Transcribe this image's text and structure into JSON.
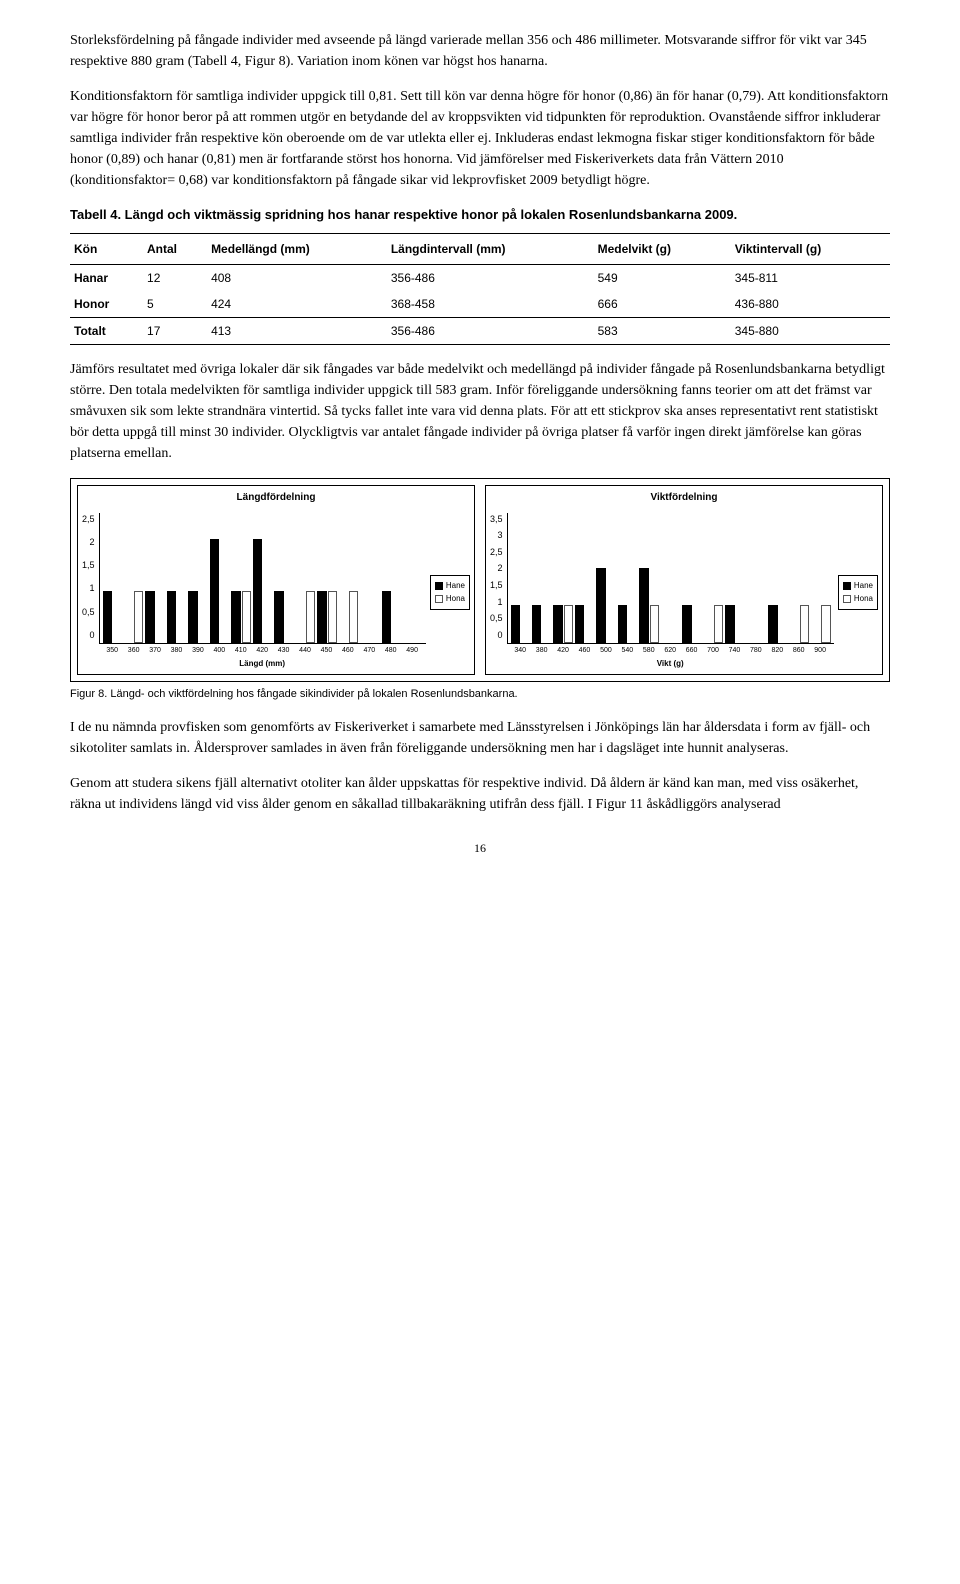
{
  "para1": "Storleksfördelning på fångade individer med avseende på längd varierade mellan 356 och 486 millimeter. Motsvarande siffror för vikt var 345 respektive 880 gram (Tabell 4, Figur 8). Variation inom könen var högst hos hanarna.",
  "para2": "Konditionsfaktorn för samtliga individer uppgick till 0,81. Sett till kön var denna högre för honor (0,86) än för hanar (0,79). Att konditionsfaktorn var högre för honor beror på att rommen utgör en betydande del av kroppsvikten vid tidpunkten för reproduktion. Ovanstående siffror inkluderar samtliga individer från respektive kön oberoende om de var utlekta eller ej. Inkluderas endast lekmogna fiskar stiger konditionsfaktorn för både honor (0,89) och hanar (0,81) men är fortfarande störst hos honorna. Vid jämförelser med Fiskeriverkets data från Vättern 2010 (konditionsfaktor= 0,68) var konditionsfaktorn på fångade sikar vid lekprovfisket 2009 betydligt högre.",
  "table_caption": "Tabell 4. Längd och viktmässig spridning hos hanar respektive honor på lokalen Rosenlundsbankarna 2009.",
  "table": {
    "headers": [
      "Kön",
      "Antal",
      "Medellängd (mm)",
      "Längdintervall (mm)",
      "Medelvikt (g)",
      "Viktintervall (g)"
    ],
    "rows": [
      [
        "Hanar",
        "12",
        "408",
        "356-486",
        "549",
        "345-811"
      ],
      [
        "Honor",
        "5",
        "424",
        "368-458",
        "666",
        "436-880"
      ],
      [
        "Totalt",
        "17",
        "413",
        "356-486",
        "583",
        "345-880"
      ]
    ]
  },
  "para3": "Jämförs resultatet med övriga lokaler där sik fångades var både medelvikt och medellängd på individer fångade på Rosenlundsbankarna betydligt större. Den totala medelvikten för samtliga individer uppgick till 583 gram. Inför föreliggande undersökning fanns teorier om att det främst var småvuxen sik som lekte strandnära vintertid. Så tycks fallet inte vara vid denna plats. För att ett stickprov ska anses representativt rent statistiskt bör detta uppgå till minst 30 individer. Olyckligtvis var antalet fångade individer på övriga platser få varför ingen direkt jämförelse kan göras platserna emellan.",
  "legend": {
    "hane": "Hane",
    "hona": "Hona"
  },
  "length_chart": {
    "title": "Längdfördelning",
    "y_ticks": [
      "2,5",
      "2",
      "1,5",
      "1",
      "0,5",
      "0"
    ],
    "y_max": 2.5,
    "x_ticks": [
      "350",
      "360",
      "370",
      "380",
      "390",
      "400",
      "410",
      "420",
      "430",
      "440",
      "450",
      "460",
      "470",
      "480",
      "490"
    ],
    "x_label": "Längd (mm)",
    "series": [
      {
        "hane": 1,
        "hona": 0
      },
      {
        "hane": 0,
        "hona": 1
      },
      {
        "hane": 1,
        "hona": 0
      },
      {
        "hane": 1,
        "hona": 0
      },
      {
        "hane": 1,
        "hona": 0
      },
      {
        "hane": 2,
        "hona": 0
      },
      {
        "hane": 1,
        "hona": 1
      },
      {
        "hane": 2,
        "hona": 0
      },
      {
        "hane": 1,
        "hona": 0
      },
      {
        "hane": 0,
        "hona": 1
      },
      {
        "hane": 1,
        "hona": 1
      },
      {
        "hane": 0,
        "hona": 1
      },
      {
        "hane": 0,
        "hona": 0
      },
      {
        "hane": 1,
        "hona": 0
      },
      {
        "hane": 0,
        "hona": 0
      }
    ]
  },
  "weight_chart": {
    "title": "Viktfördelning",
    "y_ticks": [
      "3,5",
      "3",
      "2,5",
      "2",
      "1,5",
      "1",
      "0,5",
      "0"
    ],
    "y_max": 3.5,
    "x_ticks": [
      "340",
      "380",
      "420",
      "460",
      "500",
      "540",
      "580",
      "620",
      "660",
      "700",
      "740",
      "780",
      "820",
      "860",
      "900"
    ],
    "x_label": "Vikt (g)",
    "series": [
      {
        "hane": 1,
        "hona": 0
      },
      {
        "hane": 1,
        "hona": 0
      },
      {
        "hane": 1,
        "hona": 1
      },
      {
        "hane": 1,
        "hona": 0
      },
      {
        "hane": 2,
        "hona": 0
      },
      {
        "hane": 1,
        "hona": 0
      },
      {
        "hane": 2,
        "hona": 1
      },
      {
        "hane": 0,
        "hona": 0
      },
      {
        "hane": 1,
        "hona": 0
      },
      {
        "hane": 0,
        "hona": 1
      },
      {
        "hane": 1,
        "hona": 0
      },
      {
        "hane": 0,
        "hona": 0
      },
      {
        "hane": 1,
        "hona": 0
      },
      {
        "hane": 0,
        "hona": 1
      },
      {
        "hane": 0,
        "hona": 1
      }
    ]
  },
  "figure_caption": "Figur 8. Längd- och viktfördelning hos fångade sikindivider på lokalen Rosenlundsbankarna.",
  "para4": "I de nu nämnda provfisken som genomförts av Fiskeriverket i samarbete med Länsstyrelsen i Jönköpings län har åldersdata i form av fjäll- och sikotoliter samlats in. Åldersprover samlades in även från föreliggande undersökning men har i dagsläget inte hunnit analyseras.",
  "para5": "Genom att studera sikens fjäll alternativt otoliter kan ålder uppskattas för respektive individ. Då åldern är känd kan man, med viss osäkerhet, räkna ut individens längd vid viss ålder genom en såkallad tillbakaräkning utifrån dess fjäll. I Figur 11 åskådliggörs analyserad",
  "page_number": "16"
}
